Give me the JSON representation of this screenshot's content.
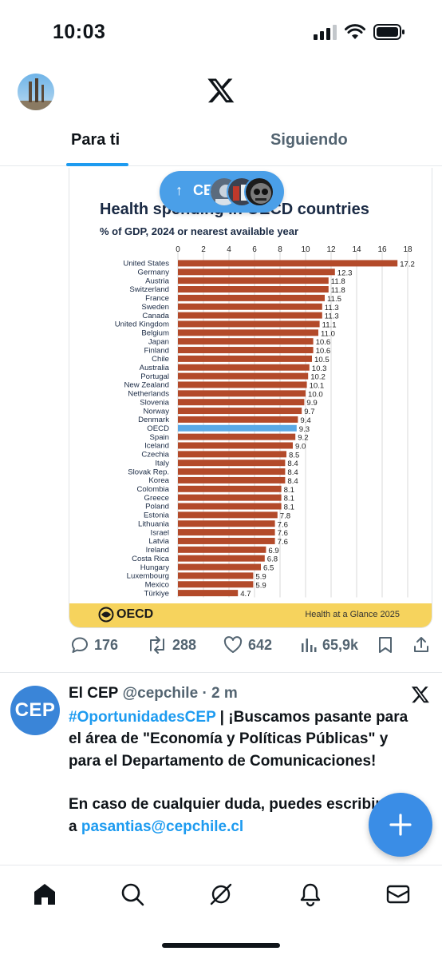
{
  "status": {
    "time": "10:03"
  },
  "header": {
    "tabs": [
      {
        "label": "Para ti",
        "active": true
      },
      {
        "label": "Siguiendo",
        "active": false
      }
    ]
  },
  "new_posts_pill": {
    "arrow": "↑",
    "label": "CE"
  },
  "tweet1": {
    "image": {
      "title": "Health spending in OECD countries",
      "subtitle": "% of GDP, 2024 or nearest available year",
      "footer_logo": "OECD",
      "footer_source": "Health at a Glance 2025"
    },
    "actions": {
      "replies": "176",
      "reposts": "288",
      "likes": "642",
      "views": "65,9k"
    }
  },
  "tweet2": {
    "avatar_text": "CEP",
    "name": "El CEP",
    "handle": "@cepchile",
    "time": "· 2 m",
    "hashtag": "#OportunidadesCEP",
    "body_part1": " | ¡Buscamos pasante para el área de \"Economía y Políticas Públicas\" y para el Departamento de Comunicaciones!",
    "body_part2": "En caso de cualquier duda, puedes escribirnos a ",
    "email": "pasantias@cepchile.cl"
  },
  "colors": {
    "accent": "#1d9bf0",
    "bar": "#b34a2a",
    "bar_highlight": "#5aa9e6",
    "footer": "#f6d35d"
  },
  "icons": {
    "nav": [
      "home-icon",
      "search-icon",
      "grok-icon",
      "notifications-icon",
      "messages-icon"
    ],
    "actions": [
      "reply-icon",
      "repost-icon",
      "like-icon",
      "views-icon",
      "bookmark-icon",
      "share-icon"
    ]
  },
  "chart_data": {
    "type": "bar",
    "orientation": "horizontal",
    "title": "Health spending in OECD countries",
    "subtitle": "% of GDP, 2024 or nearest available year",
    "xlim": [
      0,
      18
    ],
    "xticks": [
      0,
      2,
      4,
      6,
      8,
      10,
      12,
      14,
      16,
      18
    ],
    "highlight": "OECD",
    "categories": [
      "United States",
      "Germany",
      "Austria",
      "Switzerland",
      "France",
      "Sweden",
      "Canada",
      "United Kingdom",
      "Belgium",
      "Japan",
      "Finland",
      "Chile",
      "Australia",
      "Portugal",
      "New Zealand",
      "Netherlands",
      "Slovenia",
      "Norway",
      "Denmark",
      "OECD",
      "Spain",
      "Iceland",
      "Czechia",
      "Italy",
      "Slovak Rep.",
      "Korea",
      "Colombia",
      "Greece",
      "Poland",
      "Estonia",
      "Lithuania",
      "Israel",
      "Latvia",
      "Ireland",
      "Costa Rica",
      "Hungary",
      "Luxembourg",
      "Mexico",
      "Türkiye"
    ],
    "values": [
      17.2,
      12.3,
      11.8,
      11.8,
      11.5,
      11.3,
      11.3,
      11.1,
      11.0,
      10.6,
      10.6,
      10.5,
      10.3,
      10.2,
      10.1,
      10.0,
      9.9,
      9.7,
      9.4,
      9.3,
      9.2,
      9.0,
      8.5,
      8.4,
      8.4,
      8.4,
      8.1,
      8.1,
      8.1,
      7.8,
      7.6,
      7.6,
      7.6,
      6.9,
      6.8,
      6.5,
      5.9,
      5.9,
      4.7
    ],
    "value_labels": [
      "17.2",
      "12.3",
      "11.8",
      "11.8",
      "11.5",
      "11.3",
      "11.3",
      "11.1",
      "11.0",
      "10.6",
      "10.6",
      "10.5",
      "10.3",
      "10.2",
      "10.1",
      "10.0",
      "9.9",
      "9.7",
      "9.4",
      "9.3",
      "9.2",
      "9.0",
      "8.5",
      "8.4",
      "8.4",
      "8.4",
      "8.1",
      "8.1",
      "8.1",
      "7.8",
      "7.6",
      "7.6",
      "7.6",
      "6.9",
      "6.8",
      "6.5",
      "5.9",
      "5.9",
      "4.7"
    ]
  }
}
